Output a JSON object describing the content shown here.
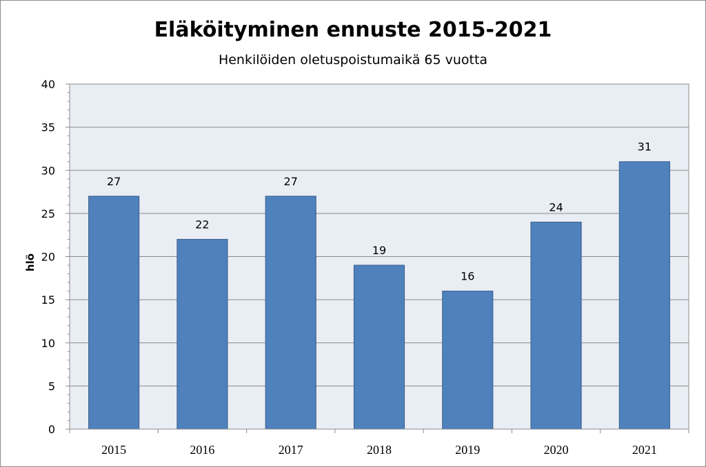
{
  "chart_data": {
    "type": "bar",
    "title": "Eläköityminen ennuste 2015-2021",
    "subtitle": "Henkilöiden oletuspoistumaikä 65 vuotta",
    "xlabel": "",
    "ylabel": "hlö",
    "categories": [
      "2015",
      "2016",
      "2017",
      "2018",
      "2019",
      "2020",
      "2021"
    ],
    "values": [
      27,
      22,
      27,
      19,
      16,
      24,
      31
    ],
    "ylim": [
      0,
      40
    ],
    "yticks": [
      0,
      5,
      10,
      15,
      20,
      25,
      30,
      35,
      40
    ],
    "grid": true,
    "legend": "none",
    "bar_color": "#4f81bd",
    "plot_background": "#e9edf4"
  }
}
